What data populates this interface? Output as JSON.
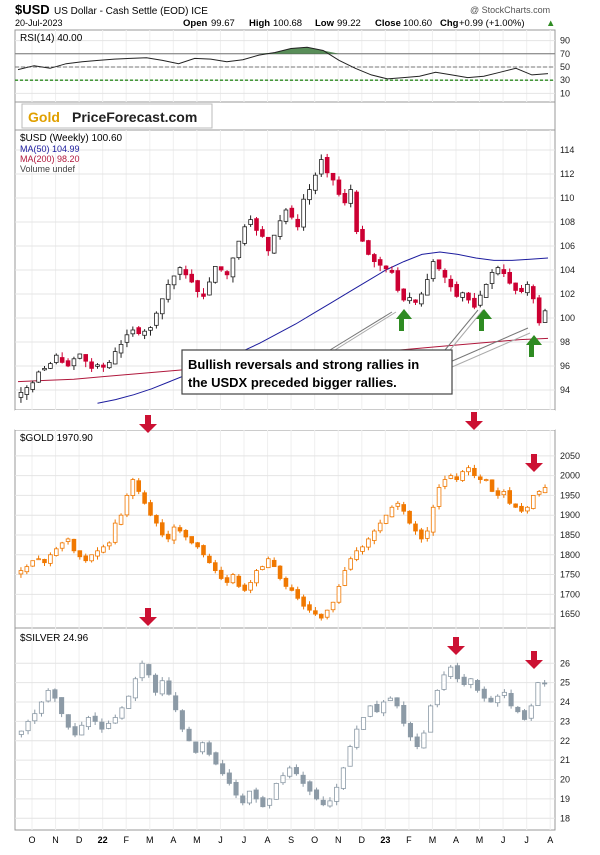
{
  "header": {
    "symbol": "$USD",
    "name": "US Dollar - Cash Settle (EOD) ICE",
    "date": "20-Jul-2023",
    "watermark": "@ StockCharts.com",
    "open_label": "Open",
    "open_value": "99.67",
    "high_label": "High",
    "high_value": "100.68",
    "low_label": "Low",
    "low_value": "99.22",
    "close_label": "Close",
    "close_value": "100.60",
    "chg_label": "Chg",
    "chg_value": "+0.99 (+1.00%)",
    "chg_arrow": "▲"
  },
  "logo": {
    "part1": "Gold",
    "part2": "PriceForecast.com"
  },
  "annotation": {
    "line1": "Bullish reversals and strong rallies in",
    "line2": "the USDX preceded bigger rallies."
  },
  "x_axis": {
    "labels": [
      "O",
      "N",
      "D",
      "22",
      "F",
      "M",
      "A",
      "M",
      "J",
      "J",
      "A",
      "S",
      "O",
      "N",
      "D",
      "23",
      "F",
      "M",
      "A",
      "M",
      "J",
      "J",
      "A"
    ]
  },
  "colors": {
    "up_candle": "#ffffff",
    "down_candle": "#cc0033",
    "gold_up": "#ffffff",
    "gold_down": "#f07800",
    "silver": "#8c9aa6",
    "ma50": "#1c1c9e",
    "ma200": "#b0183c",
    "rsi_fill": "#3c7a3c",
    "arrow_green": "#2e8b22",
    "arrow_red": "#cc1133"
  },
  "chart_data": [
    {
      "type": "line",
      "title": "RSI(14) 40.00",
      "ylim": [
        0,
        100
      ],
      "yticks": [
        10,
        30,
        50,
        70,
        90
      ],
      "reference_lines": [
        30,
        50,
        70
      ],
      "x": [
        0,
        3,
        6,
        9,
        12,
        15,
        18,
        21,
        24,
        27,
        30,
        33,
        36,
        39,
        42,
        45,
        48,
        51,
        54,
        57,
        60,
        63,
        66,
        69,
        72,
        75,
        78,
        81,
        84,
        87,
        90,
        93,
        96,
        99
      ],
      "values": [
        46,
        52,
        48,
        55,
        58,
        60,
        62,
        63,
        64,
        60,
        55,
        63,
        62,
        58,
        61,
        68,
        72,
        78,
        80,
        75,
        60,
        48,
        38,
        32,
        34,
        36,
        42,
        38,
        34,
        36,
        42,
        48,
        38,
        40
      ],
      "labels": {
        "title": "RSI(14) 40.00"
      }
    },
    {
      "type": "candlestick",
      "title": "$USD (Weekly) 100.60",
      "legend": [
        "MA(50) 104.99",
        "MA(200) 98.20",
        "Volume undef"
      ],
      "ylim": [
        92.5,
        115.5
      ],
      "yticks": [
        94,
        96,
        98,
        100,
        102,
        104,
        106,
        108,
        110,
        112,
        114
      ],
      "closes": [
        93.8,
        94.2,
        94.6,
        95.5,
        95.8,
        96.2,
        96.9,
        96.3,
        96.0,
        96.6,
        97.0,
        96.4,
        95.8,
        96.1,
        95.9,
        96.3,
        97.2,
        97.8,
        98.6,
        99.0,
        98.7,
        98.9,
        99.2,
        100.4,
        101.6,
        102.8,
        103.5,
        104.2,
        103.6,
        103.0,
        102.2,
        101.8,
        103.0,
        104.3,
        104.0,
        103.6,
        105.0,
        106.4,
        107.6,
        108.2,
        107.3,
        106.8,
        105.6,
        106.9,
        108.1,
        109.0,
        108.4,
        107.6,
        109.9,
        110.7,
        111.9,
        113.2,
        112.1,
        111.5,
        110.3,
        109.6,
        110.7,
        107.2,
        106.4,
        105.3,
        104.7,
        104.4,
        104.1,
        103.8,
        102.3,
        101.5,
        101.7,
        101.3,
        102.0,
        103.2,
        104.7,
        104.1,
        103.4,
        102.6,
        101.8,
        102.1,
        101.5,
        100.9,
        101.9,
        102.8,
        103.8,
        104.2,
        103.7,
        102.9,
        102.3,
        102.2,
        102.8,
        101.6,
        99.6,
        100.6
      ],
      "ma50": [
        92.9,
        93.2,
        93.6,
        94.1,
        94.7,
        95.3,
        95.9,
        96.5,
        97.2,
        97.9,
        98.7,
        99.5,
        100.4,
        101.3,
        102.2,
        103.1,
        104.0,
        104.7,
        105.3,
        105.5,
        105.3,
        105.0,
        104.8,
        104.8,
        104.9,
        105.0
      ],
      "ma200": [
        94.7,
        94.8,
        94.9,
        95.1,
        95.3,
        95.5,
        95.7,
        95.9,
        96.1,
        96.3,
        96.5,
        96.7,
        97.0,
        97.2,
        97.4,
        97.6,
        97.8,
        98.0,
        98.2,
        98.3
      ],
      "labels": {
        "title": "$USD (Weekly) 100.60"
      }
    },
    {
      "type": "candlestick",
      "title": "$GOLD 1970.90",
      "ylim": [
        1620,
        2090
      ],
      "yticks": [
        1650,
        1700,
        1750,
        1800,
        1850,
        1900,
        1950,
        2000,
        2050
      ],
      "closes": [
        1760,
        1770,
        1785,
        1790,
        1780,
        1800,
        1815,
        1830,
        1840,
        1810,
        1795,
        1785,
        1800,
        1810,
        1820,
        1830,
        1880,
        1900,
        1950,
        1990,
        1960,
        1930,
        1900,
        1880,
        1850,
        1840,
        1870,
        1860,
        1845,
        1830,
        1820,
        1800,
        1780,
        1760,
        1740,
        1730,
        1750,
        1720,
        1710,
        1730,
        1760,
        1770,
        1790,
        1770,
        1740,
        1720,
        1710,
        1690,
        1670,
        1660,
        1650,
        1640,
        1660,
        1680,
        1720,
        1760,
        1790,
        1810,
        1820,
        1840,
        1860,
        1880,
        1900,
        1920,
        1930,
        1910,
        1880,
        1860,
        1840,
        1860,
        1920,
        1970,
        1990,
        2000,
        1990,
        2010,
        2020,
        2000,
        1990,
        1990,
        1960,
        1950,
        1960,
        1930,
        1920,
        1910,
        1920,
        1950,
        1960,
        1970
      ],
      "labels": {
        "title": "$GOLD 1970.90"
      }
    },
    {
      "type": "candlestick",
      "title": "$SILVER 24.96",
      "ylim": [
        17.5,
        27.2
      ],
      "yticks": [
        18,
        19,
        20,
        21,
        22,
        23,
        24,
        25,
        26
      ],
      "closes": [
        22.5,
        23.0,
        23.4,
        24.0,
        24.6,
        24.2,
        23.4,
        22.7,
        22.3,
        22.8,
        23.2,
        23.0,
        22.6,
        22.9,
        23.2,
        23.7,
        24.3,
        25.2,
        26.0,
        25.4,
        24.5,
        25.1,
        24.4,
        23.6,
        22.6,
        22.0,
        21.4,
        21.9,
        21.3,
        20.8,
        20.3,
        19.8,
        19.2,
        18.8,
        19.4,
        19.0,
        18.6,
        19.0,
        19.8,
        20.2,
        20.6,
        20.3,
        19.8,
        19.4,
        19.0,
        18.7,
        18.9,
        19.6,
        20.6,
        21.7,
        22.6,
        23.2,
        23.8,
        23.5,
        24.0,
        24.2,
        23.8,
        22.9,
        22.2,
        21.7,
        22.4,
        23.8,
        24.6,
        25.4,
        25.8,
        25.2,
        24.9,
        25.2,
        24.6,
        24.2,
        24.0,
        24.3,
        24.5,
        23.8,
        23.5,
        23.1,
        23.8,
        25.0,
        24.96
      ],
      "labels": {
        "title": "$SILVER 24.96"
      }
    }
  ]
}
